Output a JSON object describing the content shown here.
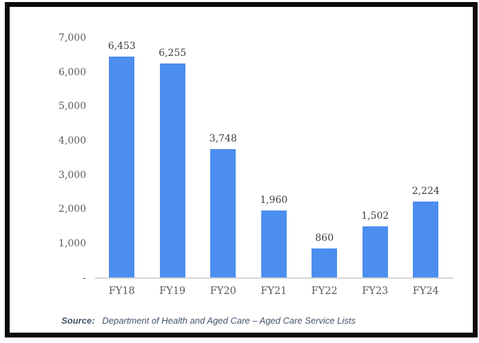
{
  "chart_data": {
    "type": "bar",
    "title": "",
    "xlabel": "",
    "ylabel": "",
    "categories": [
      "FY18",
      "FY19",
      "FY20",
      "FY21",
      "FY22",
      "FY23",
      "FY24"
    ],
    "values": [
      6453,
      6255,
      3748,
      1960,
      860,
      1502,
      2224
    ],
    "value_labels": [
      "6,453",
      "6,255",
      "3,748",
      "1,960",
      "860",
      "1,502",
      "2,224"
    ],
    "ylim": [
      0,
      7000
    ],
    "y_ticks": [
      {
        "value": 7000,
        "label": "7,000"
      },
      {
        "value": 6000,
        "label": "6,000"
      },
      {
        "value": 5000,
        "label": "5,000"
      },
      {
        "value": 4000,
        "label": "4,000"
      },
      {
        "value": 3000,
        "label": "3,000"
      },
      {
        "value": 2000,
        "label": "2,000"
      },
      {
        "value": 1000,
        "label": "1,000"
      },
      {
        "value": 0,
        "label": "-"
      }
    ],
    "grid": false,
    "legend": "none"
  },
  "colors": {
    "bar": "#4B8EF0",
    "tick_text": "#5a5a5a",
    "data_label_text": "#3d3d3d",
    "axis_line": "#d6d6d6",
    "source_text": "#44546a",
    "frame_border": "#0b0b0b"
  },
  "source": {
    "label": "Source:",
    "text": "Department of Health and Aged Care – Aged Care Service Lists"
  }
}
